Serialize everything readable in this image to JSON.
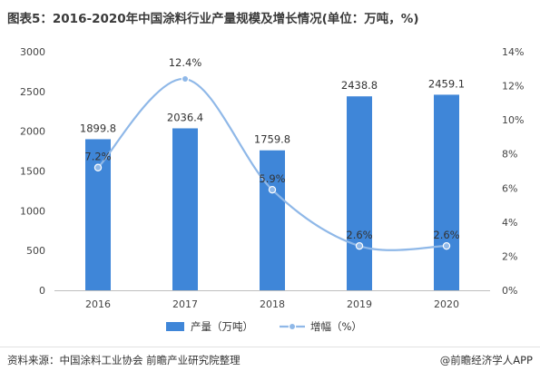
{
  "title": "图表5：2016-2020年中国涂料行业产量规模及增长情况(单位：万吨，%)",
  "chart_data": {
    "type": "bar",
    "categories": [
      "2016",
      "2017",
      "2018",
      "2019",
      "2020"
    ],
    "series": [
      {
        "name": "产量（万吨）",
        "type": "bar",
        "axis": "left",
        "values": [
          1899.8,
          2036.4,
          1759.8,
          2438.8,
          2459.1
        ],
        "labels": [
          "1899.8",
          "2036.4",
          "1759.8",
          "2438.8",
          "2459.1"
        ],
        "color": "#3f86d8"
      },
      {
        "name": "增幅（%）",
        "type": "line",
        "axis": "right",
        "smooth": true,
        "values": [
          7.2,
          12.4,
          5.9,
          2.6,
          2.6
        ],
        "labels": [
          "7.2%",
          "12.4%",
          "5.9%",
          "2.6%",
          "2.6%"
        ],
        "color": "#8fb8e8"
      }
    ],
    "y_left": {
      "min": 0,
      "max": 3000,
      "step": 500,
      "ticks": [
        "0",
        "500",
        "1000",
        "1500",
        "2000",
        "2500",
        "3000"
      ]
    },
    "y_right": {
      "min": 0,
      "max": 14,
      "step": 2,
      "ticks": [
        "0%",
        "2%",
        "4%",
        "6%",
        "8%",
        "10%",
        "12%",
        "14%"
      ]
    },
    "grid": false,
    "legend_position": "bottom-center"
  },
  "footer": {
    "source": "资料来源：中国涂料工业协会 前瞻产业研究院整理",
    "brand": "@前瞻经济学人APP"
  }
}
